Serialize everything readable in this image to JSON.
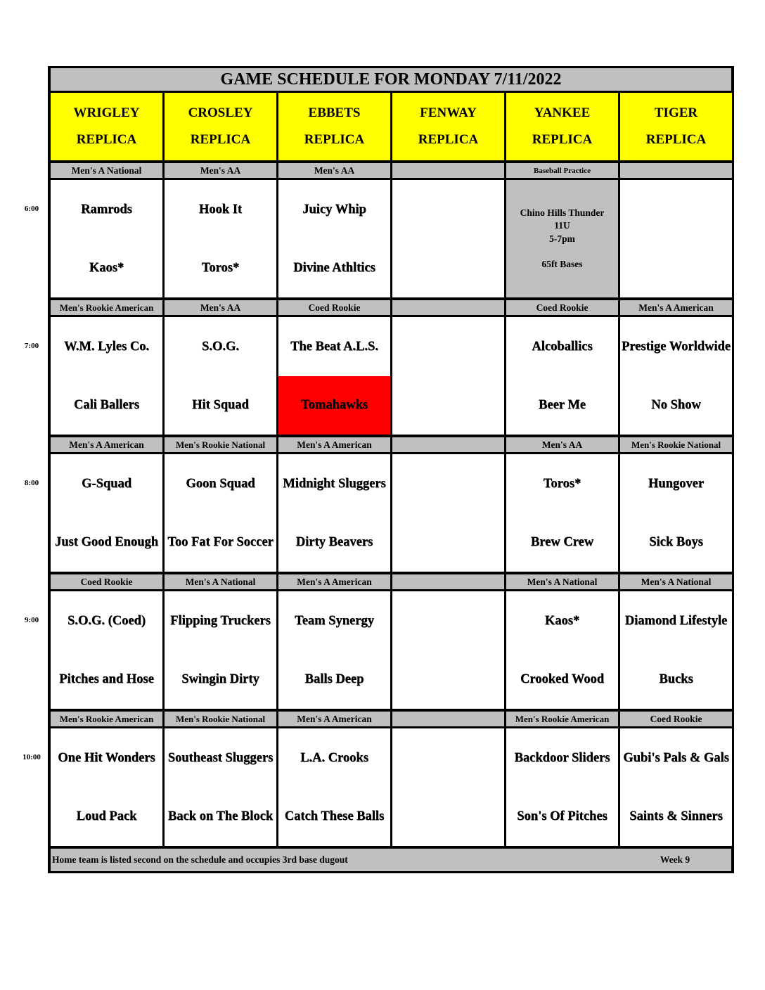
{
  "title": "GAME SCHEDULE FOR MONDAY 7/11/2022",
  "fields": [
    {
      "name": "WRIGLEY",
      "sub": "REPLICA"
    },
    {
      "name": "CROSLEY",
      "sub": "REPLICA"
    },
    {
      "name": "EBBETS",
      "sub": "REPLICA"
    },
    {
      "name": "FENWAY",
      "sub": "REPLICA"
    },
    {
      "name": "YANKEE",
      "sub": "REPLICA"
    },
    {
      "name": "TIGER",
      "sub": "REPLICA"
    }
  ],
  "blocks": [
    {
      "time": "6:00",
      "divisions": [
        "Men's A National",
        "Men's AA",
        "Men's AA",
        "",
        "Baseball Practice",
        ""
      ],
      "games": [
        [
          "Ramrods",
          "Kaos*"
        ],
        [
          "Hook It",
          "Toros*"
        ],
        [
          "Juicy Whip",
          "Divine Athltics"
        ],
        null,
        {
          "practice": [
            "Chino Hills Thunder",
            "11U",
            "5-7pm",
            "",
            "65ft Bases"
          ]
        },
        null
      ]
    },
    {
      "time": "7:00",
      "divisions": [
        "Men's Rookie American",
        "Men's AA",
        "Coed Rookie",
        "",
        "Coed Rookie",
        "Men's A American"
      ],
      "games": [
        [
          "W.M. Lyles Co.",
          "Cali Ballers"
        ],
        [
          "S.O.G.",
          "Hit Squad"
        ],
        [
          "The Beat A.L.S.",
          "Tomahawks"
        ],
        null,
        [
          "Alcoballics",
          "Beer Me"
        ],
        [
          "Prestige Worldwide",
          "No Show"
        ]
      ]
    },
    {
      "time": "8:00",
      "divisions": [
        "Men's A American",
        "Men's Rookie National",
        "Men's A American",
        "",
        "Men's AA",
        "Men's Rookie National"
      ],
      "games": [
        [
          "G-Squad",
          "Just Good Enough"
        ],
        [
          "Goon Squad",
          "Too Fat For Soccer"
        ],
        [
          "Midnight Sluggers",
          "Dirty Beavers"
        ],
        null,
        [
          "Toros*",
          "Brew Crew"
        ],
        [
          "Hungover",
          "Sick Boys"
        ]
      ]
    },
    {
      "time": "9:00",
      "divisions": [
        "Coed Rookie",
        "Men's A National",
        "Men's A American",
        "",
        "Men's A National",
        "Men's A National"
      ],
      "games": [
        [
          "S.O.G. (Coed)",
          "Pitches and Hose"
        ],
        [
          "Flipping Truckers",
          "Swingin Dirty"
        ],
        [
          "Team Synergy",
          "Balls Deep"
        ],
        null,
        [
          "Kaos*",
          "Crooked Wood"
        ],
        [
          "Diamond Lifestyle",
          "Bucks"
        ]
      ]
    },
    {
      "time": "10:00",
      "divisions": [
        "Men's Rookie American",
        "Men's Rookie National",
        "Men's A American",
        "",
        "Men's Rookie American",
        "Coed Rookie"
      ],
      "games": [
        [
          "One Hit Wonders",
          "Loud Pack"
        ],
        [
          "Southeast Sluggers",
          "Back on The Block"
        ],
        [
          "L.A. Crooks",
          "Catch These Balls"
        ],
        null,
        [
          "Backdoor Sliders",
          "Son's Of Pitches"
        ],
        [
          "Gubi's Pals & Gals",
          "Saints & Sinners"
        ]
      ]
    }
  ],
  "highlight": {
    "block": 1,
    "field": 2,
    "slot": 1,
    "color": "#ff0000"
  },
  "footer": {
    "note": "Home team is listed second on the schedule and occupies 3rd base dugout",
    "week": "Week 9"
  },
  "colors": {
    "header": "#ffff00",
    "gray": "#c0c0c0"
  }
}
